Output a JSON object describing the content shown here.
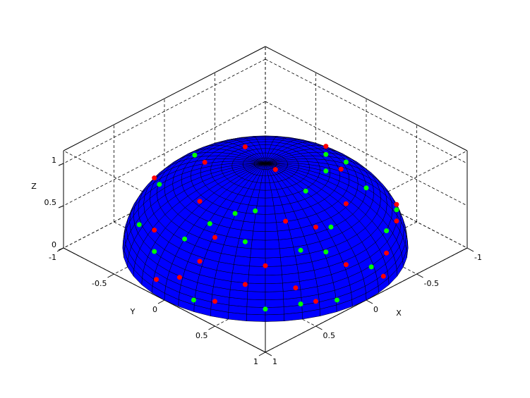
{
  "chart_data": {
    "type": "scatter3d",
    "xlabel": "X",
    "ylabel": "Y",
    "zlabel": "Z",
    "xlim": [
      -1,
      1
    ],
    "ylim": [
      -1,
      1
    ],
    "zlim": [
      0,
      1.15
    ],
    "xticks": [
      -1,
      -0.5,
      0,
      0.5,
      1
    ],
    "yticks": [
      -1,
      -0.5,
      0,
      0.5,
      1
    ],
    "zticks": [
      0,
      0.5,
      1
    ],
    "grid": true,
    "surface": {
      "shape": "hemisphere",
      "radius": 1,
      "color": "#0000ff",
      "edge_color": "#000000"
    },
    "series": [
      {
        "color": "#ff0000",
        "x": [
          0.3,
          0.7,
          0.1,
          0.5,
          -0.2,
          0.8,
          0.95,
          -0.6,
          0.0,
          0.2,
          0.6,
          0.4,
          -0.3,
          0.9,
          -0.8,
          0.3,
          -0.1,
          0.75,
          -0.45,
          0.15,
          0.55,
          -0.7,
          0.98,
          -0.2,
          0.85
        ],
        "y": [
          0.5,
          0.2,
          0.9,
          0.8,
          0.6,
          -0.3,
          0.1,
          0.7,
          0.1,
          -0.4,
          0.6,
          0.9,
          0.9,
          0.4,
          0.5,
          -0.8,
          -0.3,
          0.55,
          0.3,
          0.65,
          -0.1,
          -0.1,
          -0.1,
          0.97,
          0.2
        ],
        "z": [
          0.81,
          0.68,
          0.42,
          0.33,
          0.77,
          0.52,
          0.3,
          0.38,
          0.99,
          0.89,
          0.53,
          0.17,
          0.31,
          0.17,
          0.33,
          0.52,
          0.95,
          0.37,
          0.84,
          0.74,
          0.83,
          0.71,
          0.17,
          0.14,
          0.49
        ]
      },
      {
        "color": "#00ff00",
        "x": [
          0.4,
          0.6,
          0.2,
          -0.4,
          0.9,
          0.5,
          0.7,
          -0.5,
          0.1,
          0.65,
          0.35,
          -0.1,
          0.8,
          0.0,
          -0.7,
          0.45,
          0.96,
          -0.3,
          0.25,
          0.5,
          -0.6,
          0.2,
          0.75,
          0.05,
          -0.5
        ],
        "y": [
          0.3,
          0.4,
          0.8,
          0.8,
          -0.2,
          0.85,
          0.7,
          0.5,
          -0.6,
          0.1,
          0.7,
          0.95,
          0.0,
          0.4,
          0.6,
          -0.6,
          0.25,
          0.3,
          0.96,
          0.2,
          0.2,
          -0.9,
          -0.5,
          0.7,
          0.1
        ],
        "z": [
          0.87,
          0.69,
          0.57,
          0.45,
          0.39,
          0.17,
          0.14,
          0.71,
          0.79,
          0.75,
          0.62,
          0.3,
          0.6,
          0.92,
          0.39,
          0.66,
          0.13,
          0.91,
          0.13,
          0.84,
          0.77,
          0.39,
          0.43,
          0.71,
          0.86
        ]
      }
    ]
  }
}
